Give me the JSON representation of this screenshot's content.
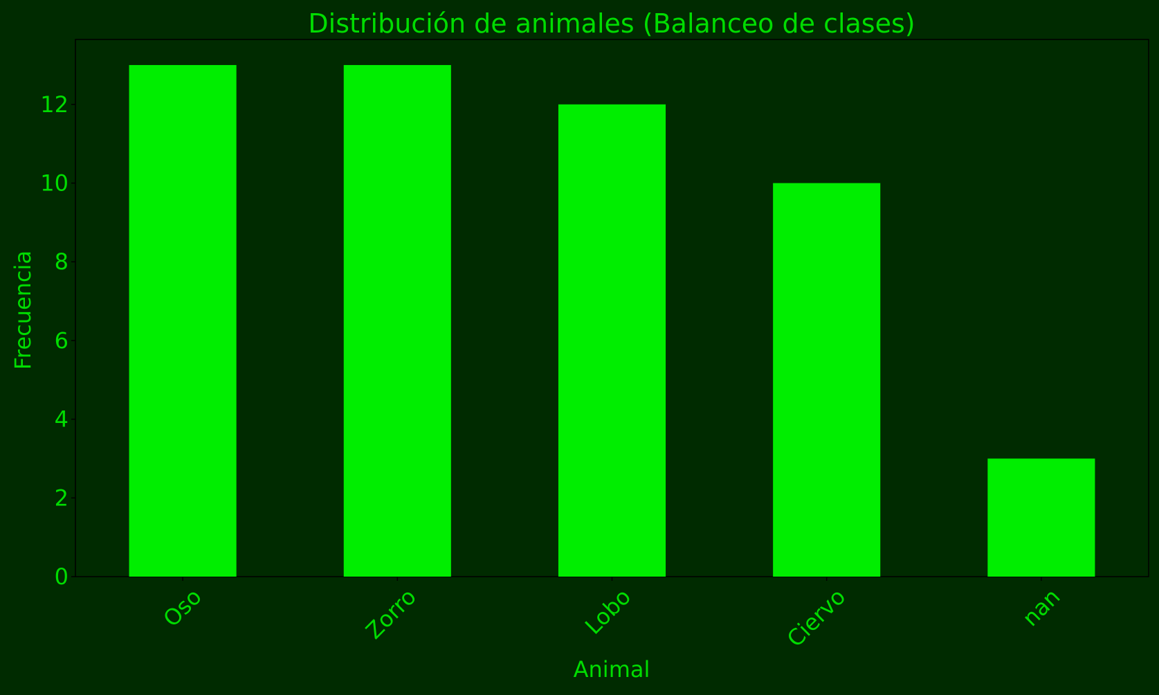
{
  "colors": {
    "background": "#002b00",
    "plot_background": "#002b00",
    "bar": "#00ee00",
    "text": "#00dd00",
    "axis": "#000000"
  },
  "chart_data": {
    "type": "bar",
    "title": "Distribución de animales (Balanceo de clases)",
    "xlabel": "Animal",
    "ylabel": "Frecuencia",
    "categories": [
      "Oso",
      "Zorro",
      "Lobo",
      "Ciervo",
      "nan"
    ],
    "values": [
      13,
      13,
      12,
      10,
      3
    ],
    "ylim": [
      0,
      13.65
    ],
    "yticks": [
      0,
      2,
      4,
      6,
      8,
      10,
      12
    ],
    "grid": false,
    "legend": "none",
    "x_tick_rotation_deg": -45
  }
}
